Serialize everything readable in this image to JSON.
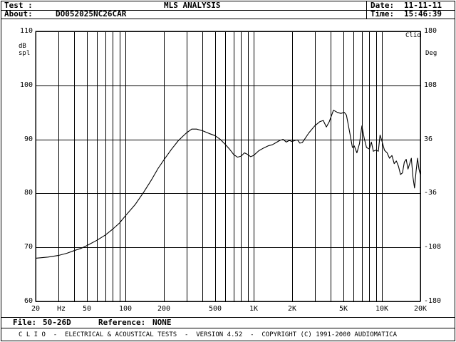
{
  "header": {
    "test_label": "Test :",
    "about_label": "About:",
    "about_value": "DO052025NC26CAR",
    "title": "MLS ANALYSIS",
    "date_label": "Date:",
    "date_value": "11-11-11",
    "time_label": "Time:",
    "time_value": "15:46:39"
  },
  "footer": {
    "file_label": "File:",
    "file_value": "50-26D",
    "reference_label": "Reference:",
    "reference_value": "NONE",
    "banner": "C L I O  -  ELECTRICAL & ACOUSTICAL TESTS  -  VERSION 4.52  -  COPYRIGHT (C) 1991-2000 AUDIOMATICA"
  },
  "chart_data": {
    "type": "line",
    "corner_label": "Clio",
    "xlabel": "Hz",
    "ylabel_left": "dB spl",
    "ylabel_right": "Deg",
    "x_scale": "log",
    "xlim": [
      20,
      20000
    ],
    "ylim": [
      60,
      110
    ],
    "y2lim": [
      -180,
      180
    ],
    "grid": true,
    "x_tick_labels": [
      {
        "value": 20,
        "label": "20"
      },
      {
        "value": 50,
        "label": "50"
      },
      {
        "value": 100,
        "label": "100"
      },
      {
        "value": 200,
        "label": "200"
      },
      {
        "value": 500,
        "label": "500"
      },
      {
        "value": 1000,
        "label": "1K"
      },
      {
        "value": 2000,
        "label": "2K"
      },
      {
        "value": 5000,
        "label": "5K"
      },
      {
        "value": 10000,
        "label": "10K"
      },
      {
        "value": 20000,
        "label": "20K"
      }
    ],
    "x_grid_values": [
      20,
      30,
      40,
      50,
      60,
      70,
      80,
      90,
      100,
      200,
      300,
      400,
      500,
      600,
      700,
      800,
      900,
      1000,
      2000,
      3000,
      4000,
      5000,
      6000,
      7000,
      8000,
      9000,
      10000,
      20000
    ],
    "y_ticks": [
      {
        "value": 110,
        "label": "110"
      },
      {
        "value": 100,
        "label": "100"
      },
      {
        "value": 90,
        "label": "90"
      },
      {
        "value": 80,
        "label": "80"
      },
      {
        "value": 70,
        "label": "70"
      },
      {
        "value": 60,
        "label": "60"
      }
    ],
    "y2_ticks": [
      {
        "value": 180,
        "label": "180"
      },
      {
        "value": 108,
        "label": "108"
      },
      {
        "value": 36,
        "label": "36"
      },
      {
        "value": -36,
        "label": "-36"
      },
      {
        "value": -108,
        "label": "-108"
      },
      {
        "value": -180,
        "label": "-180"
      }
    ],
    "series": [
      {
        "color": "#000000",
        "points": [
          [
            20,
            68.0
          ],
          [
            25,
            68.2
          ],
          [
            30,
            68.5
          ],
          [
            35,
            68.9
          ],
          [
            40,
            69.4
          ],
          [
            45,
            69.8
          ],
          [
            50,
            70.3
          ],
          [
            60,
            71.3
          ],
          [
            70,
            72.3
          ],
          [
            80,
            73.4
          ],
          [
            90,
            74.5
          ],
          [
            100,
            75.8
          ],
          [
            120,
            78.0
          ],
          [
            140,
            80.3
          ],
          [
            160,
            82.5
          ],
          [
            180,
            84.6
          ],
          [
            200,
            86.2
          ],
          [
            230,
            88.2
          ],
          [
            260,
            89.8
          ],
          [
            300,
            91.2
          ],
          [
            330,
            91.9
          ],
          [
            360,
            91.9
          ],
          [
            400,
            91.6
          ],
          [
            450,
            91.1
          ],
          [
            500,
            90.7
          ],
          [
            550,
            90.0
          ],
          [
            600,
            89.1
          ],
          [
            650,
            88.2
          ],
          [
            700,
            87.2
          ],
          [
            750,
            86.7
          ],
          [
            800,
            86.9
          ],
          [
            850,
            87.5
          ],
          [
            900,
            87.2
          ],
          [
            950,
            86.8
          ],
          [
            1000,
            87.0
          ],
          [
            1100,
            87.9
          ],
          [
            1200,
            88.4
          ],
          [
            1300,
            88.8
          ],
          [
            1400,
            89.0
          ],
          [
            1500,
            89.4
          ],
          [
            1600,
            89.8
          ],
          [
            1700,
            90.0
          ],
          [
            1800,
            89.5
          ],
          [
            1900,
            89.8
          ],
          [
            2000,
            89.6
          ],
          [
            2100,
            89.8
          ],
          [
            2200,
            89.9
          ],
          [
            2300,
            89.3
          ],
          [
            2400,
            89.4
          ],
          [
            2500,
            90.0
          ],
          [
            2700,
            91.2
          ],
          [
            3000,
            92.5
          ],
          [
            3300,
            93.3
          ],
          [
            3500,
            93.5
          ],
          [
            3700,
            92.3
          ],
          [
            3900,
            93.3
          ],
          [
            4200,
            95.4
          ],
          [
            4500,
            95.0
          ],
          [
            4800,
            94.8
          ],
          [
            5100,
            95.0
          ],
          [
            5300,
            94.5
          ],
          [
            5500,
            92.5
          ],
          [
            5700,
            90.5
          ],
          [
            5900,
            88.5
          ],
          [
            6100,
            88.8
          ],
          [
            6400,
            87.5
          ],
          [
            6700,
            89.2
          ],
          [
            7000,
            92.5
          ],
          [
            7300,
            90.2
          ],
          [
            7600,
            88.5
          ],
          [
            8000,
            88.2
          ],
          [
            8300,
            89.5
          ],
          [
            8600,
            87.8
          ],
          [
            9000,
            88.0
          ],
          [
            9400,
            87.8
          ],
          [
            9700,
            90.8
          ],
          [
            10000,
            89.8
          ],
          [
            10500,
            88.0
          ],
          [
            11000,
            87.5
          ],
          [
            11500,
            86.5
          ],
          [
            12000,
            87.0
          ],
          [
            12500,
            85.5
          ],
          [
            13000,
            86.0
          ],
          [
            13500,
            85.0
          ],
          [
            14000,
            83.5
          ],
          [
            14500,
            83.8
          ],
          [
            15000,
            85.8
          ],
          [
            15500,
            86.3
          ],
          [
            16000,
            84.5
          ],
          [
            16500,
            85.5
          ],
          [
            17000,
            86.5
          ],
          [
            17500,
            83.0
          ],
          [
            18000,
            81.0
          ],
          [
            18500,
            84.0
          ],
          [
            19000,
            86.5
          ],
          [
            19500,
            84.5
          ],
          [
            20000,
            83.5
          ]
        ]
      }
    ]
  }
}
